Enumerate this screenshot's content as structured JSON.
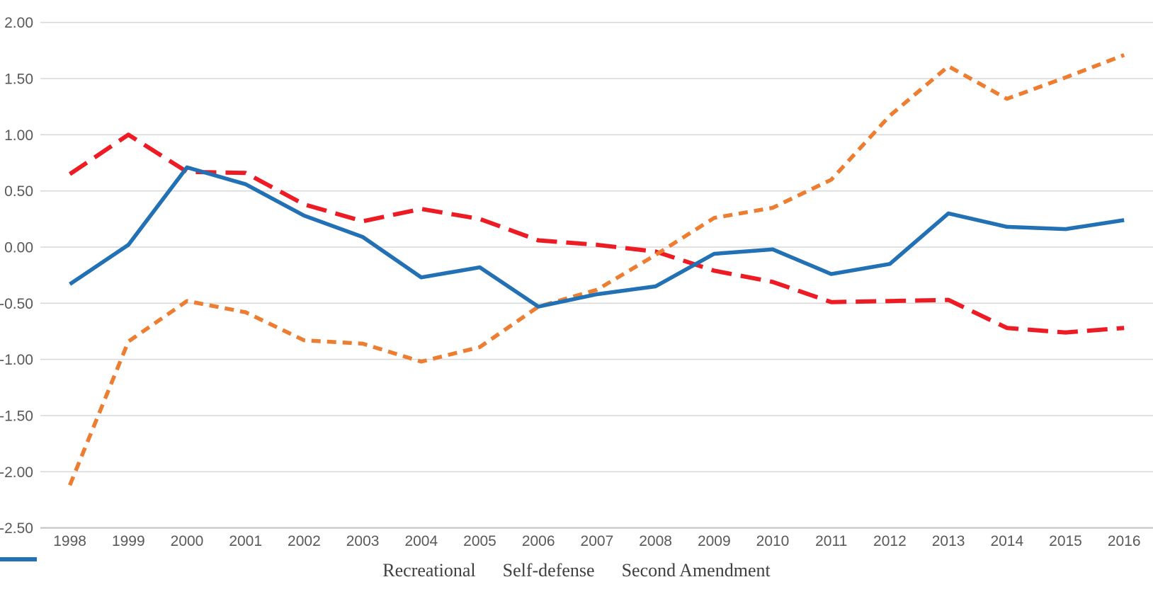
{
  "chart_data": {
    "type": "line",
    "x": [
      1998,
      1999,
      2000,
      2001,
      2002,
      2003,
      2004,
      2005,
      2006,
      2007,
      2008,
      2009,
      2010,
      2011,
      2012,
      2013,
      2014,
      2015,
      2016
    ],
    "xtick_labels": [
      "1998",
      "1999",
      "2000",
      "2001",
      "2002",
      "2003",
      "2004",
      "2005",
      "2006",
      "2007",
      "2008",
      "2009",
      "2010",
      "2011",
      "2012",
      "2013",
      "2014",
      "2015",
      "2016"
    ],
    "series": [
      {
        "name": "Recreational",
        "color": "#ed1c24",
        "dash": "long-dash",
        "values": [
          0.65,
          1.0,
          0.67,
          0.66,
          0.38,
          0.23,
          0.34,
          0.25,
          0.06,
          0.02,
          -0.04,
          -0.21,
          -0.31,
          -0.49,
          -0.48,
          -0.47,
          -0.72,
          -0.76,
          -0.72
        ]
      },
      {
        "name": "Self-defense",
        "color": "#ed7d31",
        "dash": "short-dash",
        "values": [
          -2.12,
          -0.84,
          -0.48,
          -0.58,
          -0.83,
          -0.86,
          -1.02,
          -0.89,
          -0.53,
          -0.38,
          -0.07,
          0.26,
          0.35,
          0.6,
          1.17,
          1.61,
          1.32,
          1.51,
          1.71
        ]
      },
      {
        "name": "Second Amendment",
        "color": "#2271b5",
        "dash": "solid",
        "values": [
          -0.33,
          0.02,
          0.71,
          0.56,
          0.28,
          0.09,
          -0.27,
          -0.18,
          -0.53,
          -0.42,
          -0.35,
          -0.06,
          -0.02,
          -0.24,
          -0.15,
          0.3,
          0.18,
          0.16,
          0.24
        ]
      }
    ],
    "title": "",
    "xlabel": "",
    "ylabel": "",
    "ylim": [
      -2.5,
      2.0
    ],
    "ytick_step": 0.5,
    "ytick_labels": [
      "2.00",
      "1.50",
      "1.00",
      "0.50",
      "0.00",
      "-0.50",
      "-1.00",
      "-1.50",
      "-2.00",
      "-2.50"
    ],
    "grid": true,
    "legend_position": "bottom-center"
  },
  "colors": {
    "background": "#ffffff",
    "gridline": "#d9d9d9",
    "axis_line": "#c6c6c6",
    "tick_text": "#595959",
    "legend_text": "#404040"
  }
}
